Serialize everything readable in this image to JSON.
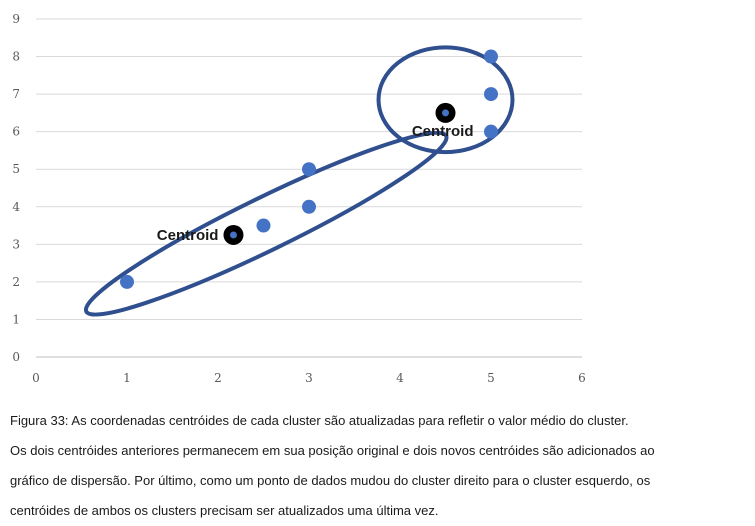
{
  "chart_data": {
    "type": "scatter",
    "xlim": [
      0,
      6
    ],
    "ylim": [
      0,
      9
    ],
    "x_ticks": [
      0,
      1,
      2,
      3,
      4,
      5,
      6
    ],
    "y_ticks": [
      0,
      1,
      2,
      3,
      4,
      5,
      6,
      7,
      8,
      9
    ],
    "grid": "horizontal",
    "colors": {
      "point": "#4472c4",
      "ellipse": "#2f4f8f",
      "centroid_outer": "#000000",
      "centroid_inner": "#4472c4",
      "grid": "#d9d9d9",
      "tick": "#595959"
    },
    "points": [
      {
        "x": 1,
        "y": 2
      },
      {
        "x": 2.5,
        "y": 3.5
      },
      {
        "x": 3,
        "y": 4
      },
      {
        "x": 3,
        "y": 5
      },
      {
        "x": 5,
        "y": 6
      },
      {
        "x": 5,
        "y": 7
      },
      {
        "x": 5,
        "y": 8
      }
    ],
    "centroids": [
      {
        "x": 2.17,
        "y": 3.25,
        "label": "Centroid"
      },
      {
        "x": 4.5,
        "y": 6.5,
        "label": "Centroid"
      }
    ],
    "clusters": [
      {
        "cx": 2.53,
        "cy": 3.55,
        "rx": 2.2,
        "ry": 0.7,
        "angle_deg": -26
      },
      {
        "cx": 4.5,
        "cy": 6.85,
        "rx": 0.8,
        "ry": 1.55,
        "angle_deg": 0
      }
    ]
  },
  "caption": {
    "lines": [
      "Figura 33: As coordenadas centróides de cada cluster são atualizadas para refletir o valor médio do cluster.",
      "Os dois centróides anteriores permanecem em sua posição original e dois novos centróides são adicionados ao",
      "gráfico de dispersão. Por último, como um ponto de dados mudou do cluster direito para o cluster esquerdo, os",
      "centróides de ambos os clusters precisam ser atualizados uma última vez."
    ]
  }
}
